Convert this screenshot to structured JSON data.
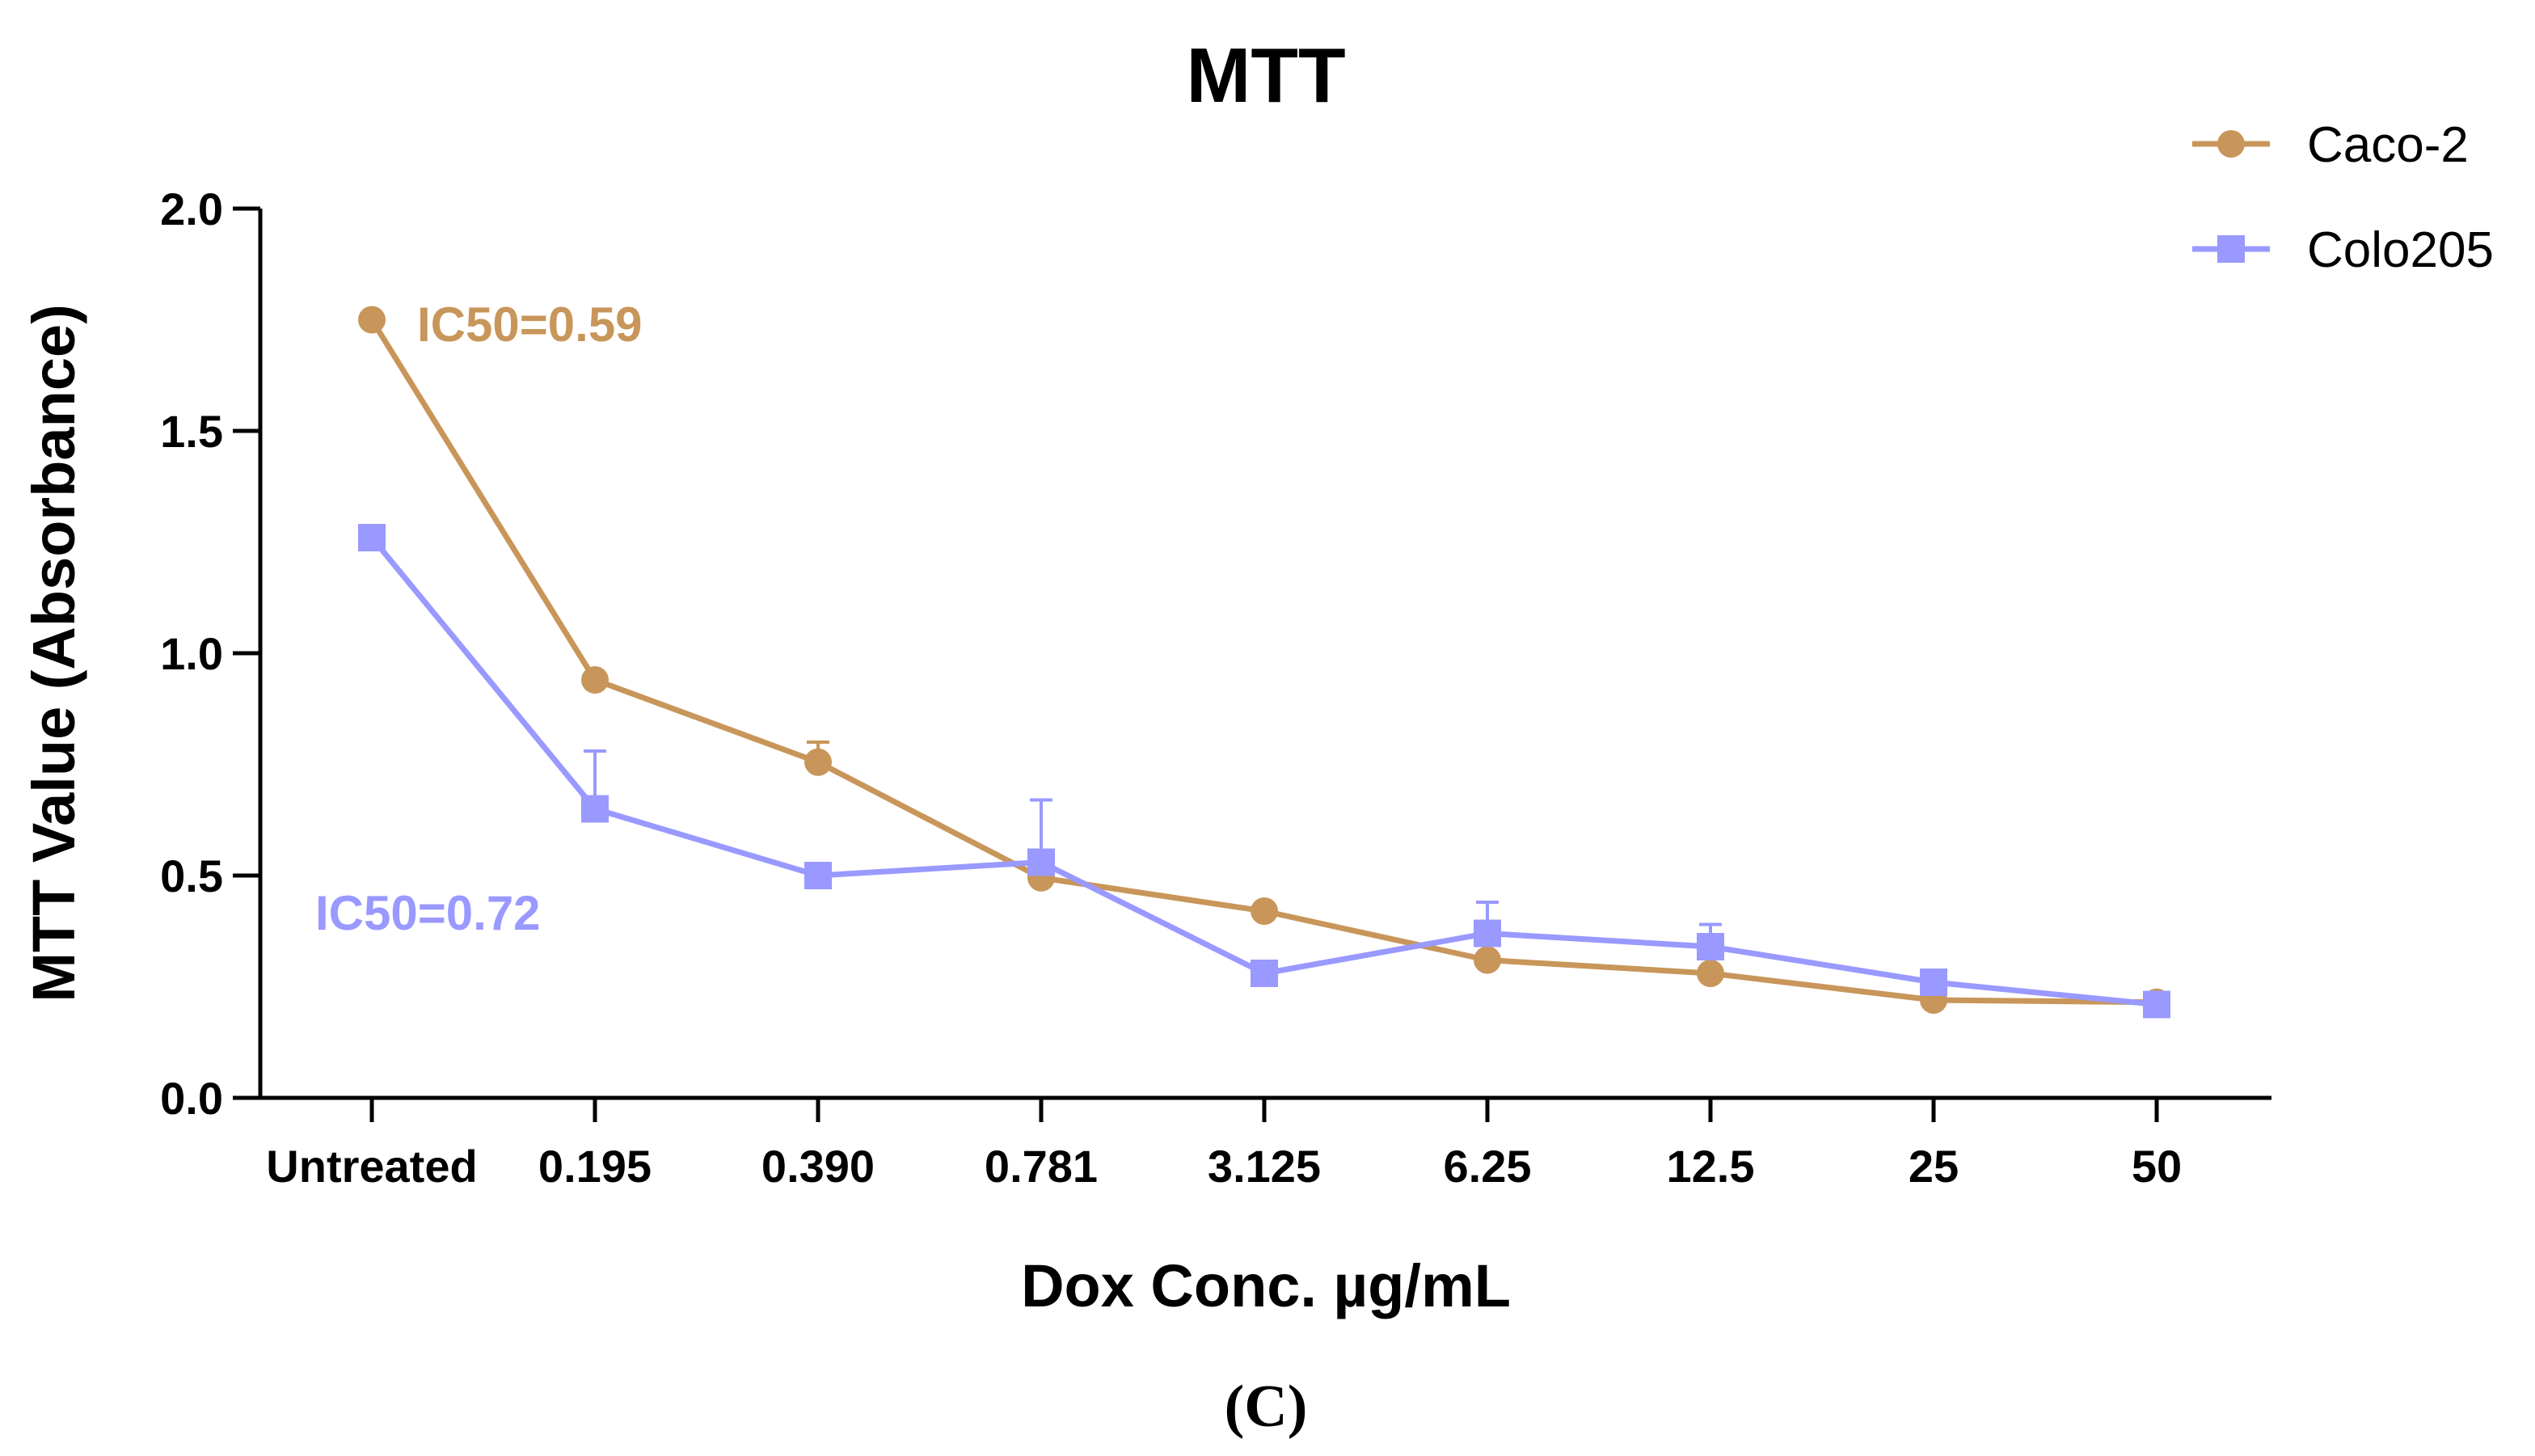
{
  "chart_data": {
    "type": "line",
    "title": "MTT",
    "xlabel": "Dox Conc. µg/mL",
    "ylabel": "MTT Value (Absorbance)",
    "ylim": [
      0,
      2.0
    ],
    "yticks": [
      0.0,
      0.5,
      1.0,
      1.5,
      2.0
    ],
    "ytick_labels": [
      "0.0",
      "0.5",
      "1.0",
      "1.5",
      "2.0"
    ],
    "categories": [
      "Untreated",
      "0.195",
      "0.390",
      "0.781",
      "3.125",
      "6.25",
      "12.5",
      "25",
      "50"
    ],
    "legend_position": "top-right",
    "series": [
      {
        "name": "Caco-2",
        "color": "#C8965A",
        "marker": "circle",
        "values": [
          1.75,
          0.94,
          0.755,
          0.495,
          0.42,
          0.31,
          0.28,
          0.22,
          0.215
        ],
        "error": [
          0,
          0,
          0.045,
          0,
          0,
          0,
          0,
          0,
          0
        ]
      },
      {
        "name": "Colo205",
        "color": "#9999FF",
        "marker": "square",
        "values": [
          1.26,
          0.65,
          0.5,
          0.53,
          0.28,
          0.37,
          0.34,
          0.26,
          0.21
        ],
        "error": [
          0,
          0.13,
          0,
          0.14,
          0,
          0.07,
          0.05,
          0,
          0
        ]
      }
    ],
    "annotations": [
      {
        "text": "IC50=0.59",
        "series": "Caco-2",
        "color": "#C8965A"
      },
      {
        "text": "IC50=0.72",
        "series": "Colo205",
        "color": "#9999FF"
      }
    ],
    "panel_label": "(C)"
  }
}
